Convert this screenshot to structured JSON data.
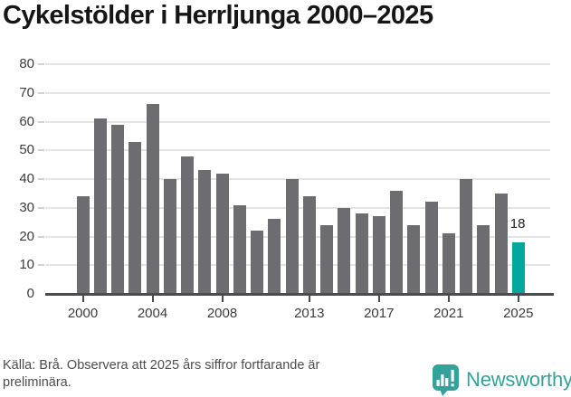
{
  "title": "Cykelstölder i Herrljunga 2000–2025",
  "chart_data": {
    "type": "bar",
    "categories": [
      2000,
      2001,
      2002,
      2003,
      2004,
      2005,
      2006,
      2007,
      2008,
      2009,
      2010,
      2011,
      2012,
      2013,
      2014,
      2015,
      2016,
      2017,
      2018,
      2019,
      2020,
      2021,
      2022,
      2023,
      2024,
      2025
    ],
    "values": [
      34,
      61,
      59,
      53,
      66,
      40,
      48,
      43,
      42,
      31,
      22,
      26,
      40,
      34,
      24,
      30,
      28,
      27,
      36,
      24,
      32,
      21,
      40,
      24,
      35,
      18
    ],
    "title": "Cykelstölder i Herrljunga 2000–2025",
    "xlabel": "",
    "ylabel": "",
    "ylim": [
      0,
      80
    ],
    "y_ticks": [
      0,
      10,
      20,
      30,
      40,
      50,
      60,
      70,
      80
    ],
    "x_tick_labels": [
      "2000",
      "2004",
      "2008",
      "2013",
      "2017",
      "2021",
      "2025"
    ],
    "grid": true,
    "legend": "none",
    "bar_color": "#6d6d71",
    "highlight_year": 2025,
    "highlight_color": "#00a79b",
    "highlight_value_label": "18"
  },
  "footer": {
    "source_note": "Källa: Brå. Observera att 2025 års siffror fortfarande är preliminära.",
    "brand_name": "Newsworthy",
    "brand_color": "#35a19b"
  }
}
